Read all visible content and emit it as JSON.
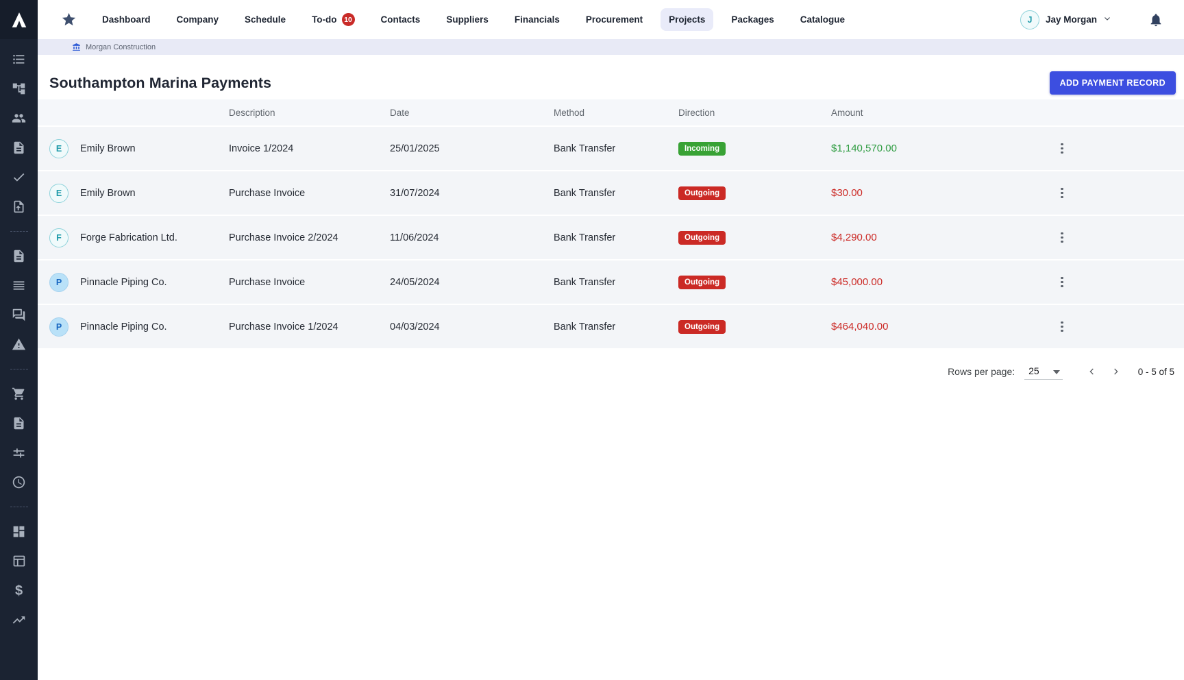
{
  "colors": {
    "accent_blue": "#3c4ee0",
    "sidebar_bg": "#1b2332",
    "breadcrumb_bg": "#e8eaf6",
    "active_nav_bg": "#e9ebf9",
    "badge_red": "#cb2a25",
    "badge_green": "#38a235",
    "amount_green": "#2e9c41",
    "amount_red": "#cc2b27",
    "row_bg": "#f3f5f8"
  },
  "sidebar": {
    "logo_letter": "A",
    "groups": [
      [
        "list",
        "hierarchy",
        "people",
        "document",
        "check",
        "file-upload"
      ],
      [
        "document",
        "reorder",
        "chat",
        "warning"
      ],
      [
        "cart",
        "document",
        "tune",
        "clock"
      ],
      [
        "dashboard",
        "table",
        "dollar",
        "trending-up"
      ]
    ]
  },
  "topnav": {
    "star_icon": "star-icon",
    "items": [
      {
        "label": "Dashboard"
      },
      {
        "label": "Company"
      },
      {
        "label": "Schedule"
      },
      {
        "label": "To-do",
        "badge": "10"
      },
      {
        "label": "Contacts"
      },
      {
        "label": "Suppliers"
      },
      {
        "label": "Financials"
      },
      {
        "label": "Procurement"
      },
      {
        "label": "Projects",
        "active": true
      },
      {
        "label": "Packages"
      },
      {
        "label": "Catalogue"
      }
    ],
    "user": {
      "initial": "J",
      "name": "Jay Morgan"
    },
    "bell_icon": "bell-icon"
  },
  "breadcrumb": {
    "company": "Morgan Construction"
  },
  "page": {
    "title": "Southampton Marina Payments",
    "add_button_label": "ADD PAYMENT RECORD"
  },
  "table": {
    "headers": [
      "Description",
      "Date",
      "Method",
      "Direction",
      "Amount"
    ],
    "rows": [
      {
        "initial": "E",
        "avatar_style": "teal",
        "payee": "Emily Brown",
        "description": "Invoice 1/2024",
        "date": "25/01/2025",
        "method": "Bank Transfer",
        "direction": "Incoming",
        "amount": "$1,140,570.00"
      },
      {
        "initial": "E",
        "avatar_style": "teal",
        "payee": "Emily Brown",
        "description": "Purchase Invoice",
        "date": "31/07/2024",
        "method": "Bank Transfer",
        "direction": "Outgoing",
        "amount": "$30.00"
      },
      {
        "initial": "F",
        "avatar_style": "teal",
        "payee": "Forge Fabrication Ltd.",
        "description": "Purchase Invoice 2/2024",
        "date": "11/06/2024",
        "method": "Bank Transfer",
        "direction": "Outgoing",
        "amount": "$4,290.00"
      },
      {
        "initial": "P",
        "avatar_style": "blue",
        "payee": "Pinnacle Piping Co.",
        "description": "Purchase Invoice",
        "date": "24/05/2024",
        "method": "Bank Transfer",
        "direction": "Outgoing",
        "amount": "$45,000.00"
      },
      {
        "initial": "P",
        "avatar_style": "blue",
        "payee": "Pinnacle Piping Co.",
        "description": "Purchase Invoice 1/2024",
        "date": "04/03/2024",
        "method": "Bank Transfer",
        "direction": "Outgoing",
        "amount": "$464,040.00"
      }
    ]
  },
  "pagination": {
    "rows_per_page_label": "Rows per page:",
    "rows_per_page_value": "25",
    "range": "0 - 5 of 5"
  }
}
